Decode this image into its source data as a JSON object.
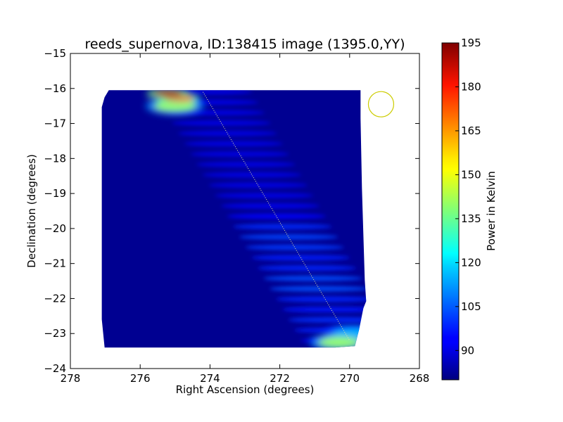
{
  "chart_data": {
    "type": "heatmap",
    "title": "reeds_supernova, ID:138415 image (1395.0,YY)",
    "xlabel": "Right Ascension (degrees)",
    "ylabel": "Declination (degrees)",
    "xlim": [
      278,
      268
    ],
    "ylim": [
      -24,
      -15
    ],
    "x_ticks": [
      278,
      276,
      274,
      272,
      270,
      268
    ],
    "y_ticks": [
      -15,
      -16,
      -17,
      -18,
      -19,
      -20,
      -21,
      -22,
      -23,
      -24
    ],
    "footprint": {
      "ra_min": 268.8,
      "ra_max": 277.1,
      "dec_min": -23.4,
      "dec_max": -16.05
    },
    "background_power": 82,
    "hotspots": [
      {
        "ra": 275.2,
        "dec": -16.15,
        "power": 190
      },
      {
        "ra": 274.9,
        "dec": -16.28,
        "power": 178
      },
      {
        "ra": 275.0,
        "dec": -16.5,
        "power": 140
      },
      {
        "ra": 270.3,
        "dec": -23.25,
        "power": 140
      },
      {
        "ra": 269.9,
        "dec": -23.0,
        "power": 115
      }
    ],
    "track": {
      "ra_start": 274.2,
      "dec_start": -16.1,
      "ra_end": 270.0,
      "dec_end": -23.2
    },
    "circle_marker": {
      "ra": 269.1,
      "dec": -16.45
    },
    "colorbar": {
      "label": "Power in Kelvin",
      "min": 80,
      "max": 195,
      "ticks": [
        90,
        105,
        120,
        135,
        150,
        165,
        180,
        195
      ]
    }
  },
  "colors": {
    "track": "#e8e8a0",
    "circle": "#cccc00",
    "axes": "#000000"
  }
}
